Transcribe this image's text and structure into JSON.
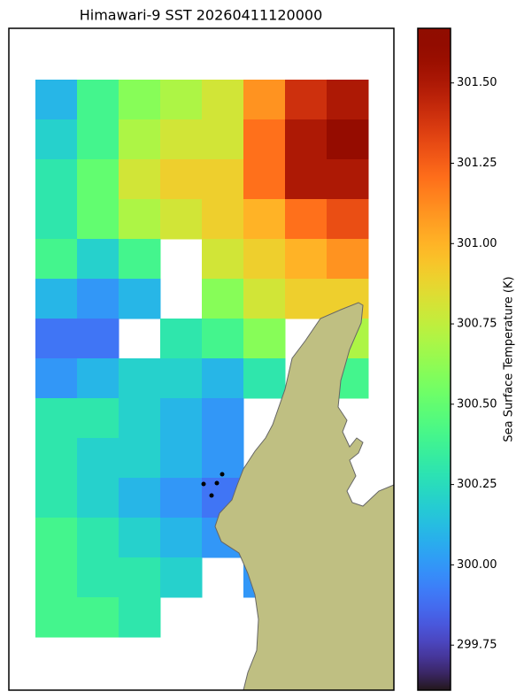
{
  "chart_data": {
    "type": "heatmap",
    "title": "Himawari-9 SST 20260411120000",
    "colorbar_label": "Sea Surface Temperature (K)",
    "colormap": "turbo",
    "clim": [
      299.61,
      301.67
    ],
    "cticks": [
      299.75,
      {
        "value": 300,
        "label": "300.00"
      },
      300.25,
      {
        "value": 300.5,
        "label": "300.50"
      },
      300.75,
      {
        "value": 301,
        "label": "301.00"
      },
      301.25,
      {
        "value": 301.5,
        "label": "301.50"
      }
    ],
    "values": [
      [
        300.1,
        300.4,
        300.6,
        300.7,
        300.8,
        301.1,
        301.4,
        301.5
      ],
      [
        300.2,
        300.4,
        300.7,
        300.8,
        300.8,
        301.2,
        301.5,
        301.6
      ],
      [
        300.3,
        300.5,
        300.8,
        300.9,
        300.9,
        301.2,
        301.5,
        301.5
      ],
      [
        300.3,
        300.5,
        300.7,
        300.8,
        300.9,
        301.0,
        301.2,
        301.3
      ],
      [
        300.4,
        300.2,
        300.4,
        null,
        300.8,
        300.9,
        301.0,
        301.1
      ],
      [
        300.1,
        300.0,
        300.1,
        null,
        300.6,
        300.8,
        300.9,
        300.9
      ],
      [
        299.9,
        299.9,
        null,
        300.3,
        300.4,
        300.6,
        null,
        300.7
      ],
      [
        300.0,
        300.1,
        300.2,
        300.2,
        300.1,
        300.3,
        null,
        300.4
      ],
      [
        300.3,
        300.3,
        300.2,
        300.1,
        300.0,
        null,
        null,
        null
      ],
      [
        300.3,
        300.2,
        300.2,
        300.1,
        300.0,
        null,
        null,
        null
      ],
      [
        300.3,
        300.2,
        300.1,
        300.0,
        299.9,
        null,
        null,
        null
      ],
      [
        300.4,
        300.3,
        300.2,
        300.1,
        300.0,
        null,
        null,
        null
      ],
      [
        300.4,
        300.3,
        300.3,
        300.2,
        null,
        300.0,
        null,
        null
      ],
      [
        300.4,
        300.4,
        300.3,
        null,
        null,
        null,
        null,
        null
      ]
    ]
  }
}
